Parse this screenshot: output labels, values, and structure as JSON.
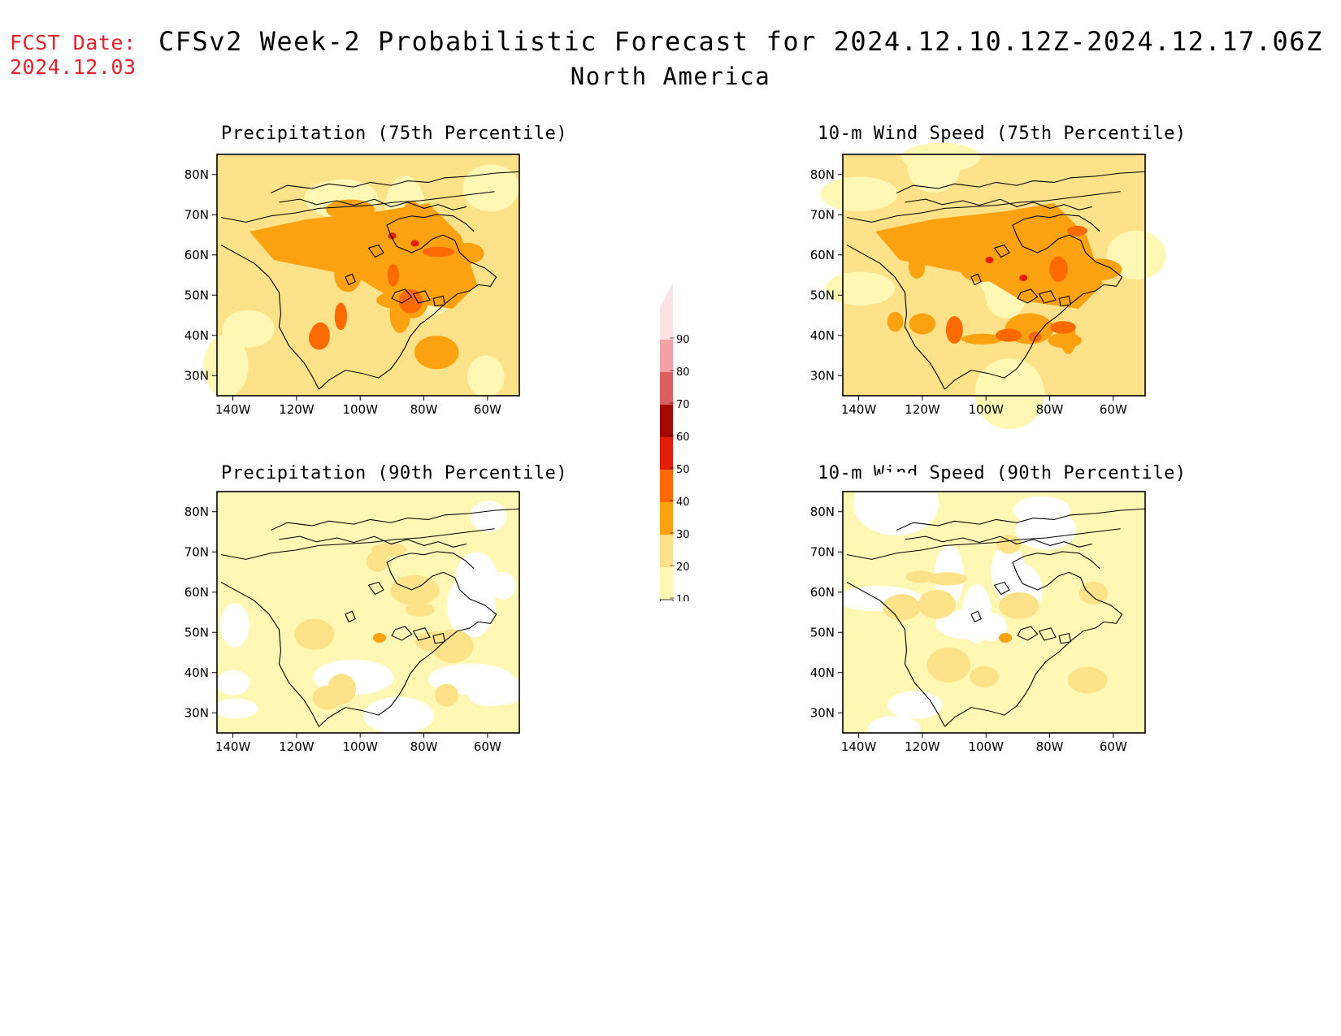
{
  "header": {
    "fcst_label": "FCST Date:",
    "fcst_date": "2024.12.03",
    "title": "CFSv2 Week-2 Probabilistic Forecast for 2024.12.10.12Z-2024.12.17.06Z",
    "region": "North America",
    "fcst_color": "#e8202a"
  },
  "axes": {
    "lat_ticks": [
      "80N",
      "70N",
      "60N",
      "50N",
      "40N",
      "30N"
    ],
    "lon_ticks": [
      "140W",
      "120W",
      "100W",
      "80W",
      "60W"
    ]
  },
  "colorbar": {
    "levels": [
      "10",
      "20",
      "30",
      "40",
      "50",
      "60",
      "70",
      "80",
      "90"
    ],
    "colors": [
      "#fff8b5",
      "#fde28a",
      "#fca10f",
      "#fd6a02",
      "#e21e06",
      "#a40a04",
      "#dc5e5e",
      "#f2a2a5",
      "#fde1e3"
    ]
  },
  "panels": [
    {
      "id": "precip75",
      "title": "Precipitation (75th Percentile)",
      "level": "high"
    },
    {
      "id": "wind75",
      "title": "10-m Wind Speed (75th Percentile)",
      "level": "high"
    },
    {
      "id": "precip90",
      "title": "Precipitation (90th Percentile)",
      "level": "low"
    },
    {
      "id": "wind90",
      "title": "10-m Wind Speed (90th Percentile)",
      "level": "low"
    }
  ]
}
